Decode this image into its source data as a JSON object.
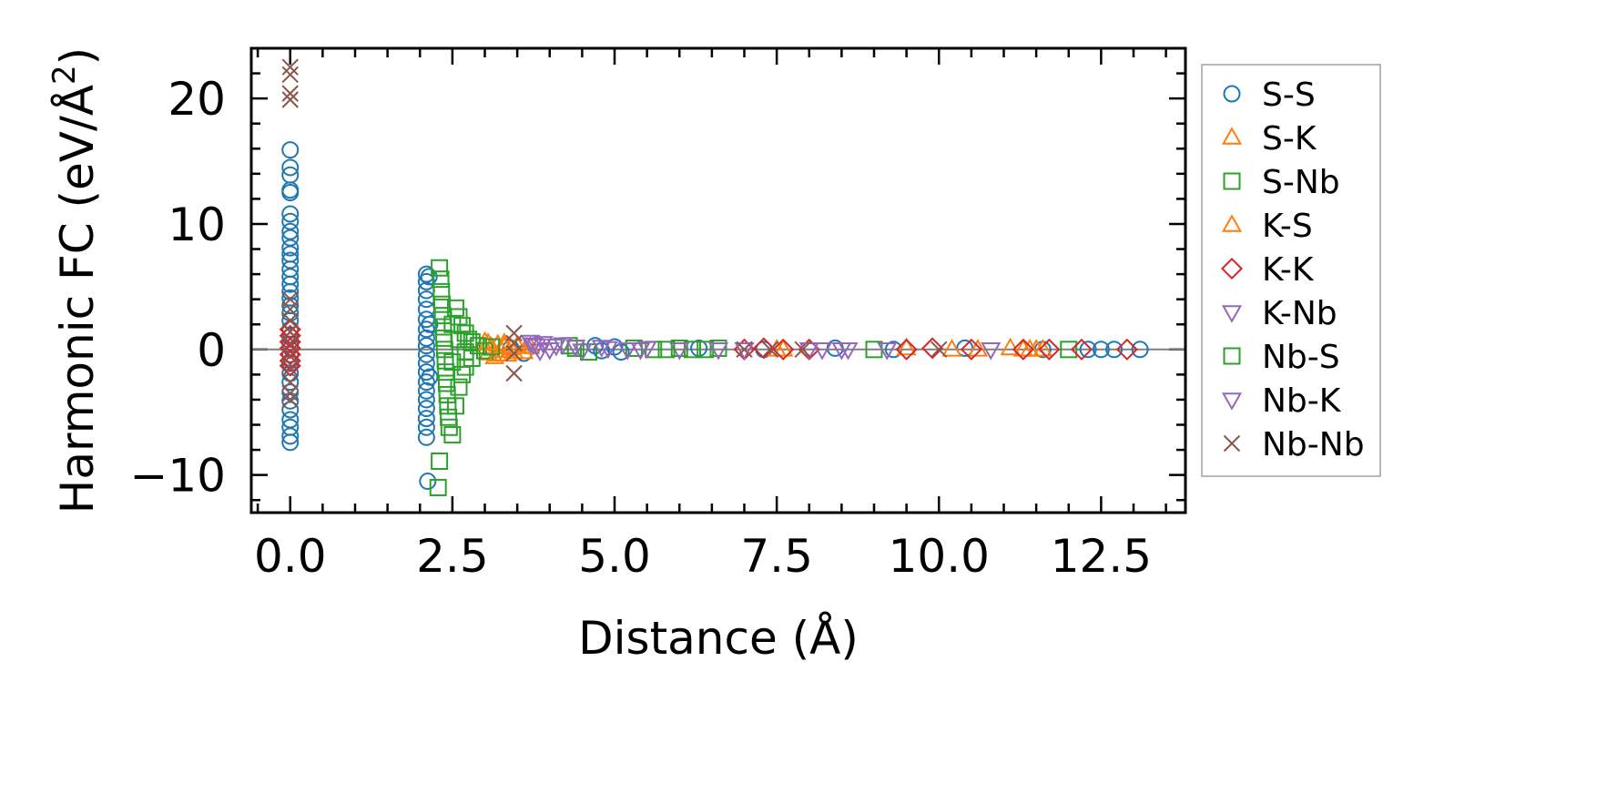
{
  "chart_data": {
    "type": "scatter",
    "xlabel": "Distance (Å)",
    "ylabel": "Harmonic FC (eV/Å²)",
    "ylabel_parts": {
      "pre": "Harmonic FC (eV/Å",
      "sup": "2",
      "post": ")"
    },
    "xlim": [
      -0.6,
      13.8
    ],
    "ylim": [
      -13,
      24
    ],
    "x_ticks": [
      0.0,
      2.5,
      5.0,
      7.5,
      10.0,
      12.5
    ],
    "x_tick_labels": [
      "0.0",
      "2.5",
      "5.0",
      "7.5",
      "10.0",
      "12.5"
    ],
    "y_ticks": [
      -10,
      0,
      10,
      20
    ],
    "y_tick_labels": [
      "−10",
      "0",
      "10",
      "20"
    ],
    "zero_line": true,
    "grid": false,
    "legend_position": "outside-right",
    "series": [
      {
        "name": "S-S",
        "marker": "circle",
        "color": "#1f77b4",
        "points": [
          [
            0.0,
            15.9
          ],
          [
            0.0,
            14.5
          ],
          [
            0.0,
            13.9
          ],
          [
            0.0,
            12.7
          ],
          [
            0.0,
            12.5
          ],
          [
            0.0,
            10.8
          ],
          [
            0.0,
            10.2
          ],
          [
            0.0,
            9.4
          ],
          [
            0.0,
            8.9
          ],
          [
            0.0,
            8.1
          ],
          [
            0.0,
            7.6
          ],
          [
            0.0,
            7.1
          ],
          [
            0.0,
            6.4
          ],
          [
            0.0,
            5.8
          ],
          [
            0.0,
            5.2
          ],
          [
            0.0,
            4.6
          ],
          [
            0.0,
            4.1
          ],
          [
            0.0,
            3.5
          ],
          [
            0.0,
            2.9
          ],
          [
            0.0,
            2.3
          ],
          [
            0.0,
            1.6
          ],
          [
            0.0,
            1.0
          ],
          [
            0.0,
            0.4
          ],
          [
            0.0,
            -0.4
          ],
          [
            0.0,
            -1.1
          ],
          [
            0.0,
            -1.9
          ],
          [
            0.0,
            -2.6
          ],
          [
            0.0,
            -3.4
          ],
          [
            0.0,
            -4.1
          ],
          [
            0.0,
            -4.8
          ],
          [
            0.0,
            -5.6
          ],
          [
            0.0,
            -6.2
          ],
          [
            0.0,
            -6.9
          ],
          [
            0.0,
            -7.4
          ],
          [
            2.1,
            6.0
          ],
          [
            2.1,
            5.4
          ],
          [
            2.1,
            4.7
          ],
          [
            2.1,
            4.0
          ],
          [
            2.1,
            3.2
          ],
          [
            2.1,
            2.4
          ],
          [
            2.1,
            1.6
          ],
          [
            2.1,
            0.9
          ],
          [
            2.1,
            0.3
          ],
          [
            2.1,
            -0.4
          ],
          [
            2.1,
            -1.1
          ],
          [
            2.1,
            -1.8
          ],
          [
            2.1,
            -2.6
          ],
          [
            2.1,
            -3.3
          ],
          [
            2.1,
            -4.0
          ],
          [
            2.1,
            -4.7
          ],
          [
            2.1,
            -5.5
          ],
          [
            2.1,
            -6.2
          ],
          [
            2.1,
            -7.0
          ],
          [
            2.12,
            -10.5
          ],
          [
            2.14,
            5.8
          ],
          [
            2.15,
            2.0
          ],
          [
            2.15,
            -2.2
          ],
          [
            3.4,
            0.1
          ],
          [
            3.6,
            -0.3
          ],
          [
            4.7,
            0.3
          ],
          [
            4.8,
            -0.1
          ],
          [
            5.0,
            0.2
          ],
          [
            5.1,
            -0.2
          ],
          [
            6.3,
            0.1
          ],
          [
            7.3,
            0.0
          ],
          [
            8.4,
            0.1
          ],
          [
            9.3,
            0.0
          ],
          [
            10.4,
            0.1
          ],
          [
            11.6,
            0.0
          ],
          [
            12.3,
            0.0
          ],
          [
            12.5,
            0.0
          ],
          [
            12.7,
            0.0
          ],
          [
            13.1,
            0.0
          ]
        ]
      },
      {
        "name": "S-K",
        "marker": "triangle-up",
        "color": "#ff7f0e",
        "points": [
          [
            3.0,
            0.6
          ],
          [
            3.05,
            -0.3
          ],
          [
            3.1,
            0.2
          ],
          [
            3.15,
            -0.6
          ],
          [
            3.2,
            0.4
          ],
          [
            3.25,
            -0.1
          ],
          [
            3.3,
            0.5
          ],
          [
            3.35,
            -0.4
          ],
          [
            3.4,
            0.1
          ],
          [
            3.5,
            0.3
          ],
          [
            3.6,
            -0.2
          ],
          [
            3.7,
            0.2
          ],
          [
            7.5,
            0.0
          ],
          [
            9.5,
            0.1
          ],
          [
            10.6,
            0.0
          ],
          [
            11.1,
            0.1
          ],
          [
            11.4,
            0.0
          ],
          [
            11.6,
            0.0
          ]
        ]
      },
      {
        "name": "S-Nb",
        "marker": "square",
        "color": "#2ca02c",
        "points": [
          [
            2.3,
            6.5
          ],
          [
            2.32,
            5.6
          ],
          [
            2.33,
            4.6
          ],
          [
            2.34,
            3.6
          ],
          [
            2.35,
            2.7
          ],
          [
            2.36,
            1.8
          ],
          [
            2.37,
            0.9
          ],
          [
            2.38,
            0.0
          ],
          [
            2.39,
            -0.9
          ],
          [
            2.4,
            -1.8
          ],
          [
            2.41,
            -2.7
          ],
          [
            2.42,
            -3.6
          ],
          [
            2.43,
            -4.5
          ],
          [
            2.44,
            -5.4
          ],
          [
            2.45,
            -6.2
          ],
          [
            2.3,
            -8.9
          ],
          [
            2.28,
            -11.0
          ],
          [
            2.5,
            -6.8
          ],
          [
            2.55,
            3.3
          ],
          [
            2.55,
            -4.5
          ],
          [
            2.6,
            2.6
          ],
          [
            2.6,
            -3.0
          ],
          [
            2.65,
            1.9
          ],
          [
            2.65,
            -2.0
          ],
          [
            2.7,
            1.3
          ],
          [
            2.7,
            -1.4
          ],
          [
            2.75,
            0.8
          ],
          [
            2.8,
            0.6
          ],
          [
            2.8,
            -0.7
          ],
          [
            2.9,
            0.3
          ],
          [
            3.0,
            -0.1
          ],
          [
            4.3,
            0.3
          ],
          [
            4.6,
            -0.2
          ],
          [
            5.3,
            0.1
          ],
          [
            5.6,
            0.0
          ],
          [
            6.0,
            0.1
          ],
          [
            6.2,
            0.0
          ],
          [
            6.6,
            0.1
          ],
          [
            9.0,
            0.0
          ],
          [
            12.0,
            0.0
          ]
        ]
      },
      {
        "name": "K-S",
        "marker": "triangle-up",
        "color": "#ff7f0e",
        "points": [
          [
            3.05,
            0.5
          ],
          [
            3.2,
            -0.4
          ],
          [
            3.3,
            0.2
          ],
          [
            3.45,
            -0.2
          ],
          [
            7.6,
            0.0
          ],
          [
            10.2,
            0.0
          ],
          [
            11.3,
            0.0
          ],
          [
            11.5,
            0.0
          ]
        ]
      },
      {
        "name": "K-K",
        "marker": "diamond",
        "color": "#d62728",
        "points": [
          [
            0.0,
            1.6
          ],
          [
            0.0,
            1.1
          ],
          [
            0.0,
            0.6
          ],
          [
            0.0,
            0.1
          ],
          [
            0.0,
            -0.4
          ],
          [
            0.0,
            -0.9
          ],
          [
            0.0,
            -1.3
          ],
          [
            7.0,
            0.0
          ],
          [
            7.3,
            0.1
          ],
          [
            7.6,
            0.0
          ],
          [
            8.0,
            0.0
          ],
          [
            9.5,
            0.0
          ],
          [
            9.9,
            0.1
          ],
          [
            10.5,
            0.0
          ],
          [
            11.3,
            0.0
          ],
          [
            11.7,
            0.0
          ],
          [
            12.2,
            0.0
          ],
          [
            12.9,
            0.0
          ]
        ]
      },
      {
        "name": "K-Nb",
        "marker": "triangle-down",
        "color": "#9467bd",
        "points": [
          [
            3.7,
            0.6
          ],
          [
            3.8,
            0.3
          ],
          [
            3.9,
            0.5
          ],
          [
            4.0,
            0.0
          ],
          [
            4.2,
            0.4
          ],
          [
            4.5,
            -0.1
          ],
          [
            4.8,
            0.2
          ],
          [
            5.2,
            0.0
          ],
          [
            5.5,
            0.1
          ],
          [
            6.0,
            0.0
          ],
          [
            7.0,
            0.0
          ],
          [
            8.2,
            0.0
          ],
          [
            8.6,
            0.0
          ],
          [
            9.2,
            0.0
          ],
          [
            10.8,
            0.0
          ]
        ]
      },
      {
        "name": "Nb-S",
        "marker": "square",
        "color": "#2ca02c",
        "points": [
          [
            2.5,
            2.0
          ],
          [
            2.5,
            -1.0
          ],
          [
            2.6,
            0.8
          ],
          [
            2.7,
            -0.2
          ],
          [
            3.1,
            0.2
          ],
          [
            4.4,
            0.1
          ],
          [
            5.8,
            0.0
          ],
          [
            6.4,
            0.0
          ]
        ]
      },
      {
        "name": "Nb-K",
        "marker": "triangle-down",
        "color": "#9467bd",
        "points": [
          [
            3.75,
            0.4
          ],
          [
            3.85,
            -0.1
          ],
          [
            4.1,
            0.3
          ],
          [
            4.4,
            0.2
          ],
          [
            4.9,
            0.1
          ],
          [
            5.4,
            0.0
          ],
          [
            6.6,
            0.0
          ],
          [
            8.0,
            0.0
          ],
          [
            8.5,
            0.0
          ]
        ]
      },
      {
        "name": "Nb-Nb",
        "marker": "x",
        "color": "#8c564b",
        "points": [
          [
            0.0,
            22.5
          ],
          [
            0.0,
            21.9
          ],
          [
            0.0,
            20.4
          ],
          [
            0.0,
            19.9
          ],
          [
            0.0,
            4.0
          ],
          [
            0.0,
            3.2
          ],
          [
            0.0,
            2.3
          ],
          [
            0.0,
            1.4
          ],
          [
            0.0,
            0.5
          ],
          [
            0.0,
            -0.5
          ],
          [
            0.0,
            -1.5
          ],
          [
            0.0,
            -2.6
          ],
          [
            0.0,
            -3.5
          ],
          [
            0.0,
            -4.0
          ],
          [
            3.45,
            1.3
          ],
          [
            3.45,
            0.5
          ],
          [
            3.45,
            -0.3
          ],
          [
            3.45,
            -1.9
          ],
          [
            7.0,
            0.0
          ],
          [
            7.4,
            0.0
          ],
          [
            7.9,
            0.0
          ],
          [
            10.0,
            0.0
          ]
        ]
      }
    ]
  }
}
